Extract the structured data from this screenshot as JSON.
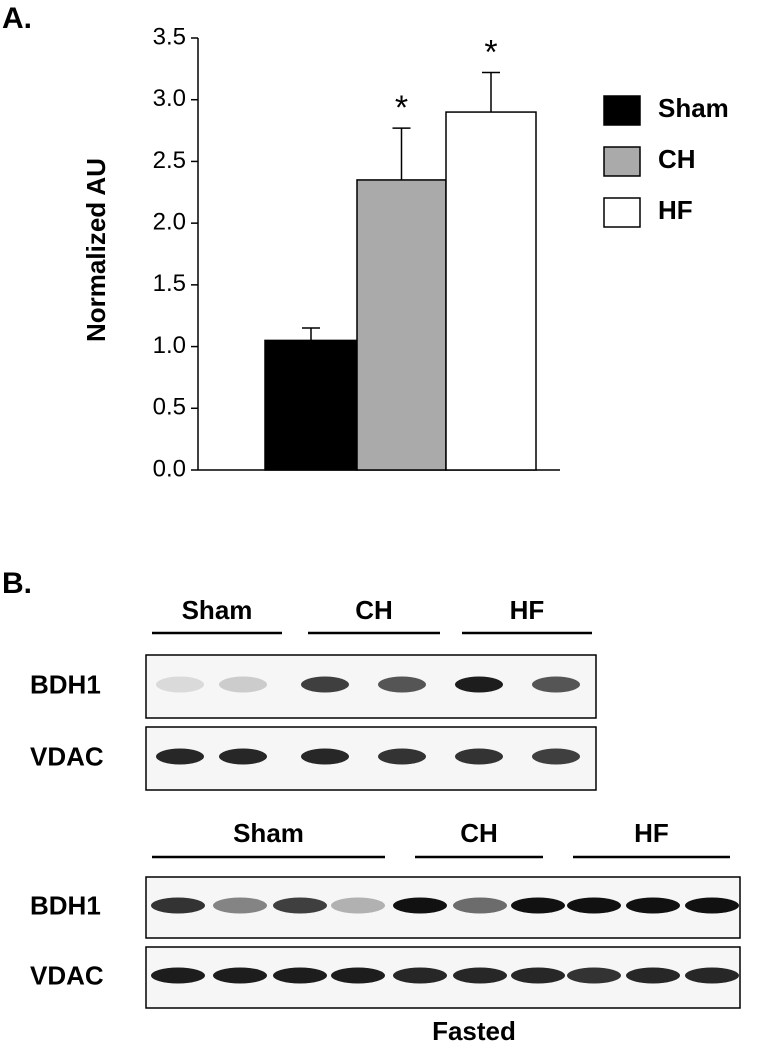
{
  "chart_data": {
    "type": "bar",
    "panel_label": "A.",
    "y_label": "Normalized AU",
    "ylim": [
      0,
      3.5
    ],
    "yticks": [
      {
        "value": 0,
        "label": "0.0"
      },
      {
        "value": 0.5,
        "label": "0.5"
      },
      {
        "value": 1,
        "label": "1.0"
      },
      {
        "value": 1.5,
        "label": "1.5"
      },
      {
        "value": 2,
        "label": "2.0"
      },
      {
        "value": 2.5,
        "label": "2.5"
      },
      {
        "value": 3,
        "label": "3.0"
      },
      {
        "value": 3.5,
        "label": "3.5"
      }
    ],
    "legend": "right",
    "series": [
      {
        "name": "Sham",
        "color": "#000000",
        "values": [
          1.05
        ],
        "errors": [
          0.1
        ]
      },
      {
        "name": "CH",
        "color": "#aaaaaa",
        "values": [
          2.35
        ],
        "errors": [
          0.42
        ],
        "marker": "*"
      },
      {
        "name": "HF",
        "color": "#ffffff",
        "values": [
          2.9
        ],
        "errors": [
          0.32
        ],
        "marker": "*"
      }
    ]
  },
  "panel_b": {
    "label": "B.",
    "blots": [
      {
        "groups": [
          "Sham",
          "CH",
          "HF"
        ],
        "rows": [
          "BDH1",
          "VDAC"
        ]
      },
      {
        "groups": [
          "Sham",
          "CH",
          "HF"
        ],
        "rows": [
          "BDH1",
          "VDAC"
        ],
        "caption": "Fasted"
      }
    ]
  }
}
